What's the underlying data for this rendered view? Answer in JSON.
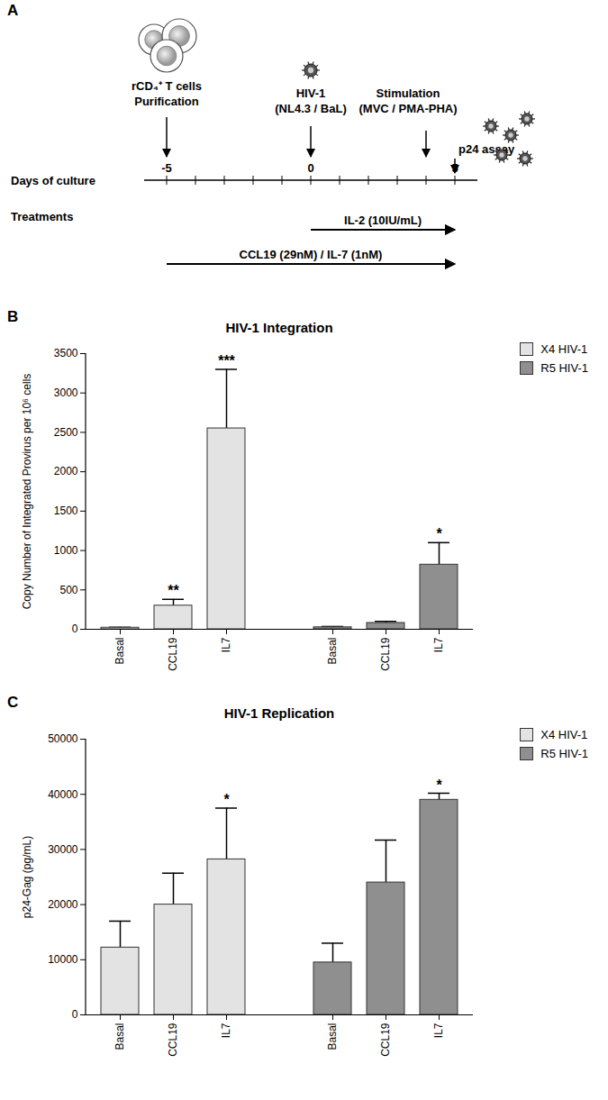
{
  "diagram": {
    "panel": "A",
    "events": [
      {
        "day": -5,
        "lines": [
          "rCD₄⁺ T cells",
          "Purification"
        ]
      },
      {
        "day": 0,
        "lines": [
          "HIV-1",
          "(NL4.3 / BaL)"
        ]
      },
      {
        "day": 4,
        "lines": [
          "Stimulation",
          "(MVC / PMA-PHA)"
        ]
      },
      {
        "day": 5,
        "lines": [
          "p24 assay"
        ]
      }
    ],
    "timeline": {
      "label": "Days of culture",
      "days": [
        -5,
        0,
        5
      ]
    },
    "treatments": {
      "label": "Treatments",
      "bars": [
        {
          "text": "IL-2 (10IU/mL)",
          "from": 0,
          "to": 5
        },
        {
          "text": "CCL19 (29nM) / IL-7 (1nM)",
          "from": -5,
          "to": 5
        }
      ]
    }
  },
  "chart_data": [
    {
      "panel": "B",
      "type": "bar",
      "title": "HIV-1 Integration",
      "categories": [
        "Basal",
        "CCL19",
        "IL7"
      ],
      "y_label": "Copy Number of Integrated Provirus per 10⁶ cells",
      "ylim": [
        0,
        3500
      ],
      "yticks": [
        0,
        500,
        1000,
        1500,
        2000,
        2500,
        3000,
        3500
      ],
      "legend": "right",
      "series": [
        {
          "name": "X4 HIV-1",
          "color": "#e3e3e3",
          "values": [
            20,
            300,
            2550
          ],
          "errors": [
            5,
            80,
            750
          ],
          "stars": [
            null,
            "**",
            "***"
          ]
        },
        {
          "name": "R5 HIV-1",
          "color": "#8f8f8f",
          "values": [
            25,
            80,
            820
          ],
          "errors": [
            10,
            20,
            280
          ],
          "stars": [
            null,
            null,
            "*"
          ]
        }
      ]
    },
    {
      "panel": "C",
      "type": "bar",
      "title": "HIV-1 Replication",
      "categories": [
        "Basal",
        "CCL19",
        "IL7"
      ],
      "y_label": "p24-Gag (pg/mL)",
      "ylim": [
        0,
        50000
      ],
      "yticks": [
        0,
        10000,
        20000,
        30000,
        40000,
        50000
      ],
      "legend": "right",
      "series": [
        {
          "name": "X4 HIV-1",
          "color": "#e3e3e3",
          "values": [
            12200,
            20000,
            28200
          ],
          "errors": [
            4800,
            5700,
            9300
          ],
          "stars": [
            null,
            null,
            "*"
          ]
        },
        {
          "name": "R5 HIV-1",
          "color": "#8f8f8f",
          "values": [
            9500,
            24000,
            39000
          ],
          "errors": [
            3500,
            7700,
            1200
          ],
          "stars": [
            null,
            null,
            "*"
          ]
        }
      ]
    }
  ]
}
